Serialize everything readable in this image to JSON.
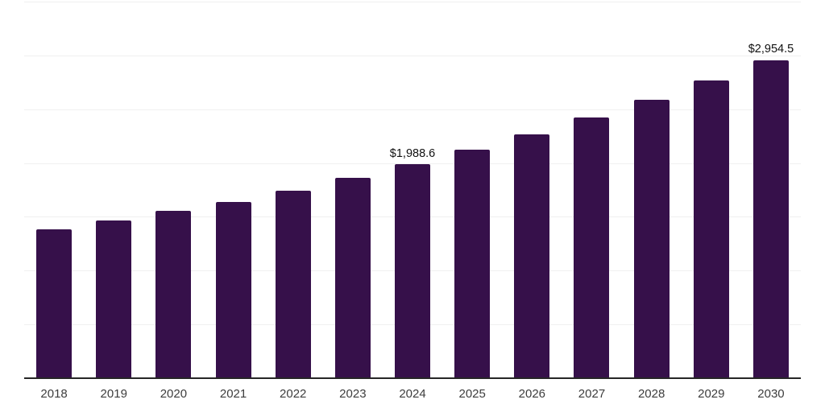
{
  "chart_data": {
    "type": "bar",
    "title": "",
    "xlabel": "",
    "ylabel": "",
    "categories": [
      "2018",
      "2019",
      "2020",
      "2021",
      "2022",
      "2023",
      "2024",
      "2025",
      "2026",
      "2027",
      "2028",
      "2029",
      "2030"
    ],
    "values": [
      1387,
      1467,
      1557,
      1641,
      1743,
      1860,
      1988.6,
      2126,
      2268,
      2424,
      2589,
      2768,
      2954.5
    ],
    "bar_labels": {
      "2024": "$1,988.6",
      "2030": "$2,954.5"
    },
    "ylim": [
      0,
      3500
    ],
    "gridline_interval": 500,
    "grid": "horizontal",
    "legend_position": "none",
    "y_tick_labels_shown": false,
    "colors": {
      "bar": "#36104a",
      "gridline": "#f0f0f0",
      "axis_line": "#262626",
      "value_label": "#111111",
      "tick_label": "#3d3d3d",
      "background": "#ffffff"
    }
  }
}
